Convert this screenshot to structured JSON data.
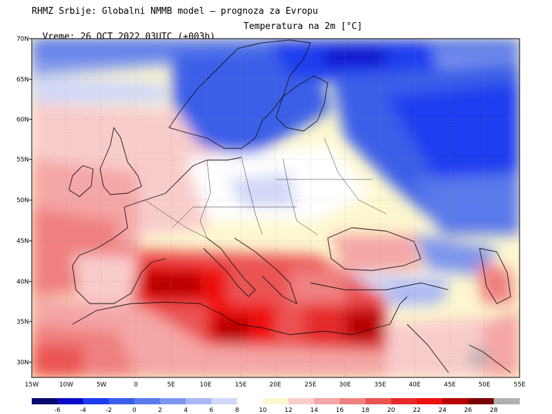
{
  "header": {
    "line1": "RHMZ Srbije: Globalni NMMB model — prognoza za Evropu",
    "line2_left": "Vreme: 26 OCT 2022 03UTC (+003h)",
    "line2_right": "Temperatura na 2m [°C]"
  },
  "map": {
    "lat_labels": [
      "70N",
      "65N",
      "60N",
      "55N",
      "50N",
      "45N",
      "40N",
      "35N",
      "30N"
    ],
    "lon_labels": [
      "15W",
      "10W",
      "5W",
      "0",
      "5E",
      "10E",
      "15E",
      "20E",
      "25E",
      "30E",
      "35E",
      "40E",
      "45E",
      "50E",
      "55E"
    ],
    "extent": {
      "lon_min": -15,
      "lon_max": 55,
      "lat_min": 28,
      "lat_max": 70
    },
    "gridlines": true
  },
  "legend": {
    "labels": [
      "-6",
      "-4",
      "-2",
      "0",
      "2",
      "4",
      "6",
      "8",
      "10",
      "12",
      "14",
      "16",
      "18",
      "20",
      "22",
      "24",
      "26",
      "28"
    ],
    "colors": [
      "#0a0a6e",
      "#0b0bc8",
      "#1d3cf0",
      "#3a5ee8",
      "#5a79ea",
      "#7d95ee",
      "#a8b6f4",
      "#d2d8f8",
      "#ffffff",
      "#fdf7cf",
      "#f9cccc",
      "#f5a6a6",
      "#f08080",
      "#eb5252",
      "#e62a2a",
      "#ee1010",
      "#b80000",
      "#7a0000",
      "#b0b0b0"
    ]
  },
  "regions": [
    {
      "name": "arctic-cold",
      "color": "#3a5ee8"
    },
    {
      "name": "scandinavia-cold",
      "color": "#1d3cf0"
    },
    {
      "name": "russia-cold",
      "color": "#3a5ee8"
    },
    {
      "name": "atlantic-warm",
      "color": "#f5a6a6"
    },
    {
      "name": "mediterranean-hot",
      "color": "#e62a2a"
    },
    {
      "name": "north-africa-warm",
      "color": "#f08080"
    }
  ]
}
